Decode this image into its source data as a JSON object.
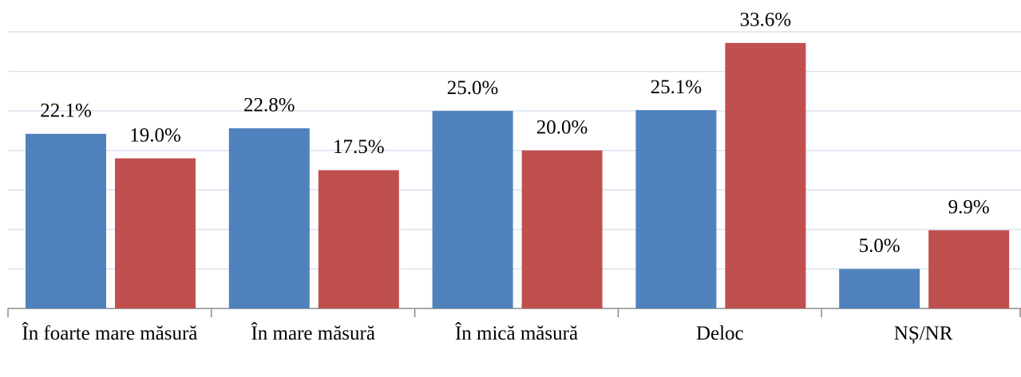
{
  "chart_data": {
    "type": "bar",
    "categories": [
      "În foarte mare măsură",
      "În mare măsură",
      "În mică măsură",
      "Deloc",
      "NȘ/NR"
    ],
    "series": [
      {
        "color": "#4f81bd",
        "values": [
          22.1,
          22.8,
          25.0,
          25.1,
          5.0
        ],
        "value_labels": [
          "22.1%",
          "22.8%",
          "25.0%",
          "25.1%",
          "5.0%"
        ]
      },
      {
        "color": "#c0504d",
        "values": [
          19.0,
          17.5,
          20.0,
          33.6,
          9.9
        ],
        "value_labels": [
          "19.0%",
          "17.5%",
          "20.0%",
          "33.6%",
          "9.9%"
        ]
      }
    ],
    "ylim": [
      0,
      35
    ],
    "yticks": [
      0,
      5,
      10,
      15,
      20,
      25,
      30,
      35
    ],
    "grid": true
  }
}
